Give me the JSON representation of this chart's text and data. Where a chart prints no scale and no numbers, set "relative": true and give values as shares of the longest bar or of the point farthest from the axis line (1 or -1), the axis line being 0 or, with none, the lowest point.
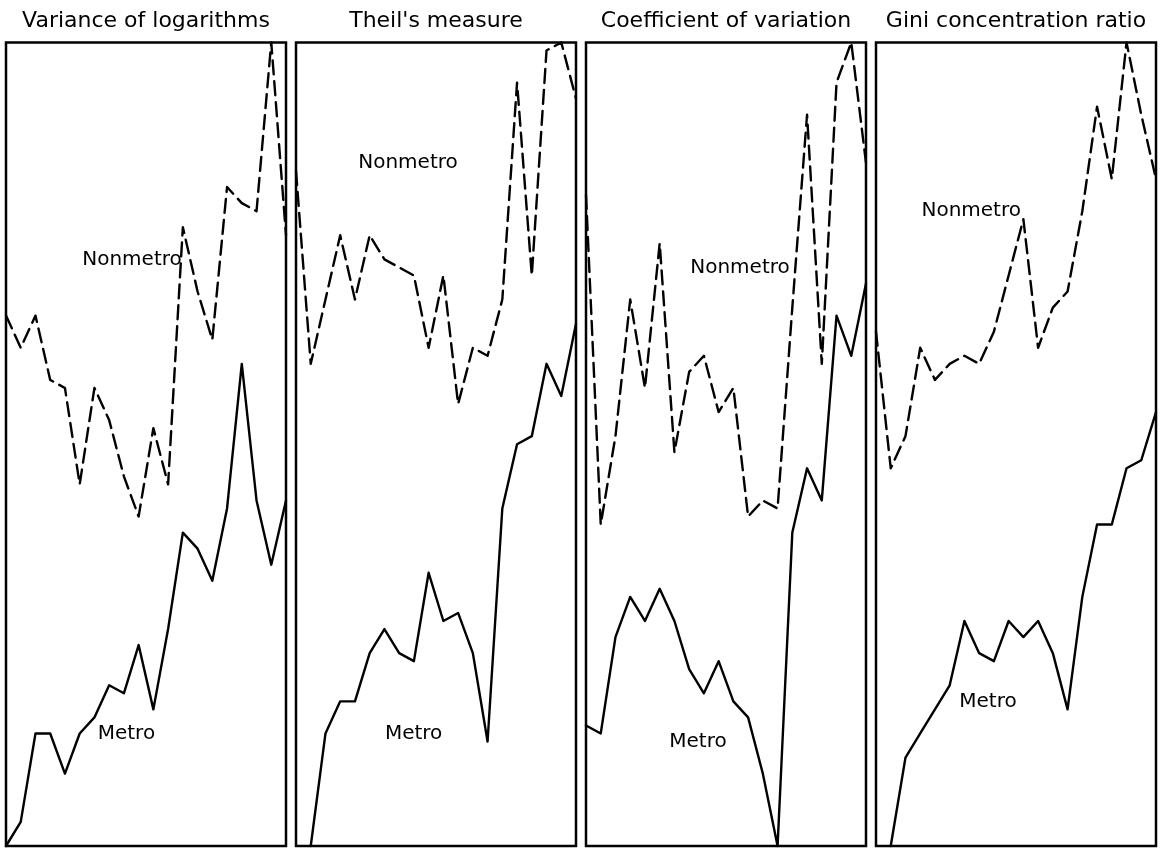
{
  "chart_data": [
    {
      "type": "line",
      "title": "Variance of logarithms",
      "relative": true,
      "marker": "none",
      "categories": [
        null,
        null,
        null,
        null,
        null,
        null,
        null,
        null,
        null,
        null,
        null,
        null,
        null,
        null,
        null,
        null,
        null,
        null,
        null,
        null
      ],
      "series": [
        {
          "name": "Nonmetro",
          "color": "#000000",
          "line_style": "dashed",
          "values": [
            0.66,
            0.62,
            0.66,
            0.58,
            0.57,
            0.45,
            0.57,
            0.53,
            0.46,
            0.41,
            0.52,
            0.45,
            0.77,
            0.69,
            0.63,
            0.82,
            0.8,
            0.79,
            1.0,
            0.76
          ]
        },
        {
          "name": "Metro",
          "color": "#000000",
          "line_style": "solid",
          "values": [
            0,
            0.03,
            0.14,
            0.14,
            0.09,
            0.14,
            0.16,
            0.2,
            0.19,
            0.25,
            0.17,
            0.27,
            0.39,
            0.37,
            0.33,
            0.42,
            0.6,
            0.43,
            0.35,
            0.43
          ]
        }
      ]
    },
    {
      "type": "line",
      "title": "Theil's measure",
      "relative": true,
      "marker": "none",
      "categories": [
        null,
        null,
        null,
        null,
        null,
        null,
        null,
        null,
        null,
        null,
        null,
        null,
        null,
        null,
        null,
        null,
        null,
        null,
        null,
        null
      ],
      "series": [
        {
          "name": "Nonmetro",
          "color": "#000000",
          "line_style": "dashed",
          "values": [
            0.84,
            0.6,
            0.68,
            0.76,
            0.68,
            0.76,
            0.73,
            0.72,
            0.71,
            0.62,
            0.71,
            0.55,
            0.62,
            0.61,
            0.68,
            0.95,
            0.71,
            0.99,
            1.0,
            0.93
          ]
        },
        {
          "name": "Metro",
          "color": "#000000",
          "line_style": "solid",
          "values": [
            null,
            0,
            0.14,
            0.18,
            0.18,
            0.24,
            0.27,
            0.24,
            0.23,
            0.34,
            0.28,
            0.29,
            0.24,
            0.13,
            0.42,
            0.5,
            0.51,
            0.6,
            0.56,
            0.65
          ]
        }
      ]
    },
    {
      "type": "line",
      "title": "Coefficient of variation",
      "relative": true,
      "marker": "none",
      "categories": [
        null,
        null,
        null,
        null,
        null,
        null,
        null,
        null,
        null,
        null,
        null,
        null,
        null,
        null,
        null,
        null,
        null,
        null,
        null,
        null
      ],
      "series": [
        {
          "name": "Nonmetro",
          "color": "#000000",
          "line_style": "dashed",
          "values": [
            0.81,
            0.4,
            0.51,
            0.68,
            0.57,
            0.75,
            0.49,
            0.59,
            0.61,
            0.54,
            0.57,
            0.41,
            0.43,
            0.42,
            0.67,
            0.91,
            0.6,
            0.95,
            1.0,
            0.85
          ]
        },
        {
          "name": "Metro",
          "color": "#000000",
          "line_style": "solid",
          "values": [
            0.15,
            0.14,
            0.26,
            0.31,
            0.28,
            0.32,
            0.28,
            0.22,
            0.19,
            0.23,
            0.18,
            0.16,
            0.09,
            0,
            0.39,
            0.47,
            0.43,
            0.66,
            0.61,
            0.7
          ]
        }
      ]
    },
    {
      "type": "line",
      "title": "Gini concentration ratio",
      "relative": true,
      "marker": "none",
      "categories": [
        null,
        null,
        null,
        null,
        null,
        null,
        null,
        null,
        null,
        null,
        null,
        null,
        null,
        null,
        null,
        null,
        null,
        null,
        null,
        null
      ],
      "series": [
        {
          "name": "Nonmetro",
          "color": "#000000",
          "line_style": "dashed",
          "values": [
            0.64,
            0.47,
            0.51,
            0.62,
            0.58,
            0.6,
            0.61,
            0.6,
            0.64,
            0.71,
            0.78,
            0.62,
            0.67,
            0.69,
            0.79,
            0.92,
            0.83,
            1.0,
            0.91,
            0.83
          ]
        },
        {
          "name": "Metro",
          "color": "#000000",
          "line_style": "solid",
          "values": [
            null,
            0,
            0.11,
            0.14,
            0.17,
            0.2,
            0.28,
            0.24,
            0.23,
            0.28,
            0.26,
            0.28,
            0.24,
            0.17,
            0.31,
            0.4,
            0.4,
            0.47,
            0.48,
            0.54
          ]
        }
      ]
    }
  ]
}
